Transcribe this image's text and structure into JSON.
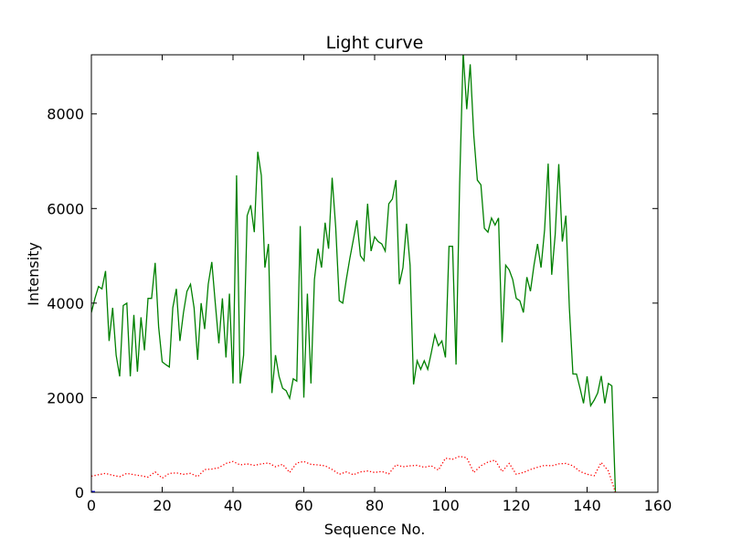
{
  "chart_data": {
    "type": "line",
    "title": "Light curve",
    "xlabel": "Sequence No.",
    "ylabel": "Intensity",
    "xlim": [
      0,
      160
    ],
    "ylim": [
      0,
      9250
    ],
    "xticks": [
      0,
      20,
      40,
      60,
      80,
      100,
      120,
      140,
      160
    ],
    "yticks": [
      0,
      2000,
      4000,
      6000,
      8000
    ],
    "grid": false,
    "series": [
      {
        "color": "#008000",
        "style": "solid",
        "x": [
          0,
          1,
          2,
          3,
          4,
          5,
          6,
          7,
          8,
          9,
          10,
          11,
          12,
          13,
          14,
          15,
          16,
          17,
          18,
          19,
          20,
          21,
          22,
          23,
          24,
          25,
          26,
          27,
          28,
          29,
          30,
          31,
          32,
          33,
          34,
          35,
          36,
          37,
          38,
          39,
          40,
          41,
          42,
          43,
          44,
          45,
          46,
          47,
          48,
          49,
          50,
          51,
          52,
          53,
          54,
          55,
          56,
          57,
          58,
          59,
          60,
          61,
          62,
          63,
          64,
          65,
          66,
          67,
          68,
          69,
          70,
          71,
          72,
          73,
          74,
          75,
          76,
          77,
          78,
          79,
          80,
          81,
          82,
          83,
          84,
          85,
          86,
          87,
          88,
          89,
          90,
          91,
          92,
          93,
          94,
          95,
          96,
          97,
          98,
          99,
          100,
          101,
          102,
          103,
          104,
          105,
          106,
          107,
          108,
          109,
          110,
          111,
          112,
          113,
          114,
          115,
          116,
          117,
          118,
          119,
          120,
          121,
          122,
          123,
          124,
          125,
          126,
          127,
          128,
          129,
          130,
          131,
          132,
          133,
          134,
          135,
          136,
          137,
          138,
          139,
          140,
          141,
          142,
          143,
          144,
          145,
          146,
          147,
          148
        ],
        "y": [
          3800,
          4100,
          4350,
          4300,
          4680,
          3200,
          3900,
          2900,
          2450,
          3950,
          4000,
          2450,
          3750,
          2550,
          3700,
          3000,
          4100,
          4100,
          4850,
          3500,
          2760,
          2700,
          2650,
          3900,
          4300,
          3200,
          3800,
          4250,
          4400,
          3900,
          2800,
          4000,
          3450,
          4400,
          4870,
          4000,
          3150,
          4100,
          2850,
          4200,
          2300,
          6700,
          2300,
          2900,
          5850,
          6070,
          5500,
          7200,
          6700,
          4750,
          5250,
          2100,
          2900,
          2450,
          2200,
          2150,
          1990,
          2400,
          2350,
          5630,
          2000,
          4200,
          2300,
          4500,
          5150,
          4750,
          5700,
          5150,
          6650,
          5600,
          4050,
          4000,
          4500,
          4950,
          5350,
          5750,
          5000,
          4900,
          6100,
          5100,
          5400,
          5300,
          5250,
          5100,
          6100,
          6200,
          6600,
          4400,
          4750,
          5680,
          4800,
          2280,
          2780,
          2600,
          2780,
          2600,
          2950,
          3330,
          3100,
          3200,
          2850,
          5200,
          5200,
          2700,
          6500,
          9300,
          8100,
          9050,
          7550,
          6600,
          6500,
          5580,
          5500,
          5800,
          5650,
          5800,
          3170,
          4800,
          4700,
          4500,
          4100,
          4050,
          3800,
          4550,
          4250,
          4800,
          5250,
          4750,
          5550,
          6950,
          4600,
          5450,
          6940,
          5300,
          5850,
          3900,
          2500,
          2500,
          2200,
          1880,
          2450,
          1830,
          1950,
          2100,
          2460,
          1880,
          2300,
          2250,
          0
        ]
      },
      {
        "color": "#ff0000",
        "style": "dotted",
        "x": [
          0,
          2,
          4,
          6,
          8,
          10,
          12,
          14,
          16,
          18,
          20,
          22,
          24,
          26,
          28,
          30,
          32,
          34,
          36,
          38,
          40,
          42,
          44,
          46,
          48,
          50,
          52,
          54,
          56,
          58,
          60,
          62,
          64,
          66,
          68,
          70,
          72,
          74,
          76,
          78,
          80,
          82,
          84,
          86,
          88,
          90,
          92,
          94,
          96,
          98,
          100,
          102,
          104,
          106,
          108,
          110,
          112,
          114,
          116,
          118,
          120,
          122,
          124,
          126,
          128,
          130,
          132,
          134,
          136,
          138,
          140,
          142,
          144,
          146,
          148
        ],
        "y": [
          340,
          370,
          400,
          360,
          330,
          400,
          370,
          350,
          320,
          430,
          300,
          400,
          410,
          380,
          400,
          330,
          480,
          490,
          520,
          610,
          650,
          580,
          600,
          570,
          600,
          620,
          540,
          590,
          420,
          620,
          650,
          590,
          580,
          560,
          480,
          380,
          430,
          370,
          430,
          450,
          420,
          440,
          390,
          580,
          540,
          560,
          570,
          530,
          560,
          470,
          720,
          700,
          760,
          730,
          420,
          560,
          640,
          680,
          440,
          610,
          380,
          420,
          480,
          530,
          570,
          560,
          600,
          610,
          560,
          440,
          380,
          350,
          630,
          450,
          0
        ]
      },
      {
        "color": "#0000ff",
        "style": "solid",
        "x": [
          0,
          1
        ],
        "y": [
          0,
          0
        ]
      }
    ]
  }
}
